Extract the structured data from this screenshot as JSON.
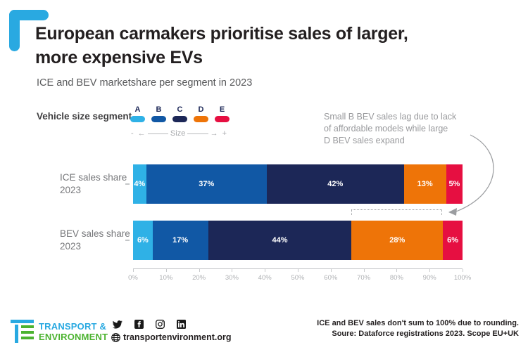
{
  "header": {
    "title_line1": "European carmakers prioritise sales of larger,",
    "title_line2": "more expensive EVs",
    "subtitle": "ICE and BEV marketshare per segment in 2023"
  },
  "legend": {
    "label": "Vehicle size segment",
    "size_scale": {
      "minus": "-",
      "left_arrow": "←",
      "label": "Size",
      "right_arrow": "→",
      "plus": "+"
    }
  },
  "annotation": {
    "lines": [
      "Small B BEV sales lag due to lack",
      "of affordable models while large",
      "D BEV sales expand"
    ]
  },
  "chart_data": {
    "type": "bar",
    "orientation": "horizontal",
    "stacked": true,
    "title": "European carmakers prioritise sales of larger, more expensive EVs",
    "subtitle": "ICE and BEV marketshare per segment in 2023",
    "categories": [
      "A",
      "B",
      "C",
      "D",
      "E"
    ],
    "colors": [
      "#2fb1e6",
      "#1158a5",
      "#1c2757",
      "#ee7408",
      "#e60f41"
    ],
    "series": [
      {
        "name": "ICE sales share 2023",
        "label_line1": "ICE sales share",
        "label_line2": "2023",
        "values": [
          4,
          37,
          42,
          13,
          5
        ]
      },
      {
        "name": "BEV sales share 2023",
        "label_line1": "BEV sales share",
        "label_line2": "2023",
        "values": [
          6,
          17,
          44,
          28,
          6
        ]
      }
    ],
    "value_suffix": "%",
    "x_ticks": [
      "0%",
      "10%",
      "20%",
      "30%",
      "40%",
      "50%",
      "60%",
      "70%",
      "80%",
      "90%",
      "100%"
    ],
    "xlim": [
      0,
      100
    ],
    "grid": false,
    "legend_position": "top-left",
    "highlight": "BEV segment D (28%) marked with dotted bracket and arrow from annotation"
  },
  "footer": {
    "brand_line1": "TRANSPORT &",
    "brand_line2": "ENVIRONMENT",
    "social_icons": [
      "twitter-icon",
      "facebook-icon",
      "instagram-icon",
      "linkedin-icon"
    ],
    "website": "transportenvironment.org",
    "note_line1": "ICE and BEV sales don't sum to 100% due to rounding.",
    "note_line2": "Soure: Dataforce registrations 2023. Scope EU+UK"
  },
  "colors": {
    "brand_blue": "#29a9e1",
    "brand_green": "#4cb330",
    "title_text": "#231f20",
    "muted_text": "#98999c"
  }
}
